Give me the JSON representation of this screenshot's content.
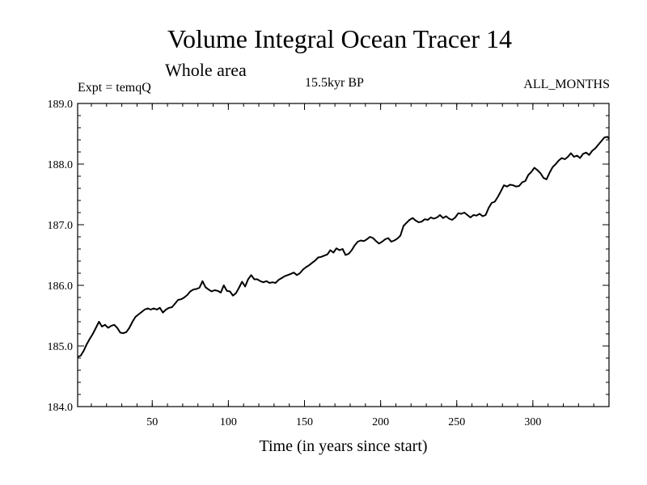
{
  "header": {
    "title": "Volume Integral Ocean Tracer 14",
    "subtitle": "Whole area",
    "left_label": "Expt = temqQ",
    "center_label": "15.5kyr BP",
    "right_label": "ALL_MONTHS"
  },
  "chart_data": {
    "type": "line",
    "title": "Volume Integral Ocean Tracer 14",
    "subtitle": "Whole area",
    "xlabel": "Time (in years since start)",
    "ylabel": "",
    "xlim": [
      1,
      350
    ],
    "ylim": [
      184.0,
      189.0
    ],
    "xticks": [
      50,
      100,
      150,
      200,
      250,
      300
    ],
    "xtick_labels": [
      "50",
      "100",
      "150",
      "200",
      "250",
      "300"
    ],
    "yticks": [
      184.0,
      185.0,
      186.0,
      187.0,
      188.0,
      189.0
    ],
    "ytick_labels": [
      "184.0",
      "185.0",
      "186.0",
      "187.0",
      "188.0",
      "189.0"
    ],
    "grid": false,
    "series": [
      {
        "name": "Tracer 14",
        "color": "#000000",
        "points": [
          [
            1,
            184.82
          ],
          [
            3,
            184.84
          ],
          [
            5,
            184.92
          ],
          [
            7,
            185.03
          ],
          [
            9,
            185.12
          ],
          [
            11,
            185.2
          ],
          [
            13,
            185.3
          ],
          [
            15,
            185.4
          ],
          [
            17,
            185.32
          ],
          [
            19,
            185.35
          ],
          [
            21,
            185.3
          ],
          [
            23,
            185.33
          ],
          [
            25,
            185.35
          ],
          [
            27,
            185.3
          ],
          [
            29,
            185.22
          ],
          [
            31,
            185.21
          ],
          [
            33,
            185.23
          ],
          [
            35,
            185.3
          ],
          [
            37,
            185.4
          ],
          [
            39,
            185.48
          ],
          [
            41,
            185.52
          ],
          [
            43,
            185.56
          ],
          [
            45,
            185.6
          ],
          [
            47,
            185.62
          ],
          [
            49,
            185.6
          ],
          [
            51,
            185.62
          ],
          [
            53,
            185.6
          ],
          [
            55,
            185.63
          ],
          [
            57,
            185.55
          ],
          [
            59,
            185.6
          ],
          [
            61,
            185.63
          ],
          [
            63,
            185.64
          ],
          [
            65,
            185.7
          ],
          [
            67,
            185.76
          ],
          [
            69,
            185.77
          ],
          [
            71,
            185.8
          ],
          [
            73,
            185.84
          ],
          [
            75,
            185.9
          ],
          [
            77,
            185.93
          ],
          [
            79,
            185.94
          ],
          [
            81,
            185.96
          ],
          [
            83,
            186.07
          ],
          [
            85,
            185.97
          ],
          [
            87,
            185.93
          ],
          [
            89,
            185.9
          ],
          [
            91,
            185.92
          ],
          [
            93,
            185.91
          ],
          [
            95,
            185.88
          ],
          [
            97,
            186.0
          ],
          [
            99,
            185.91
          ],
          [
            101,
            185.9
          ],
          [
            103,
            185.83
          ],
          [
            105,
            185.87
          ],
          [
            107,
            185.96
          ],
          [
            109,
            186.06
          ],
          [
            111,
            185.98
          ],
          [
            113,
            186.1
          ],
          [
            115,
            186.17
          ],
          [
            117,
            186.1
          ],
          [
            119,
            186.1
          ],
          [
            121,
            186.07
          ],
          [
            123,
            186.05
          ],
          [
            125,
            186.07
          ],
          [
            127,
            186.04
          ],
          [
            129,
            186.05
          ],
          [
            131,
            186.04
          ],
          [
            133,
            186.09
          ],
          [
            135,
            186.12
          ],
          [
            137,
            186.15
          ],
          [
            139,
            186.17
          ],
          [
            141,
            186.19
          ],
          [
            143,
            186.21
          ],
          [
            145,
            186.17
          ],
          [
            147,
            186.2
          ],
          [
            149,
            186.26
          ],
          [
            151,
            186.3
          ],
          [
            153,
            186.33
          ],
          [
            155,
            186.37
          ],
          [
            157,
            186.41
          ],
          [
            159,
            186.46
          ],
          [
            161,
            186.47
          ],
          [
            163,
            186.49
          ],
          [
            165,
            186.51
          ],
          [
            167,
            186.58
          ],
          [
            169,
            186.54
          ],
          [
            171,
            186.61
          ],
          [
            173,
            186.58
          ],
          [
            175,
            186.6
          ],
          [
            177,
            186.5
          ],
          [
            179,
            186.52
          ],
          [
            181,
            186.58
          ],
          [
            183,
            186.66
          ],
          [
            185,
            186.72
          ],
          [
            187,
            186.74
          ],
          [
            189,
            186.73
          ],
          [
            191,
            186.76
          ],
          [
            193,
            186.8
          ],
          [
            195,
            186.78
          ],
          [
            197,
            186.73
          ],
          [
            199,
            186.69
          ],
          [
            201,
            186.72
          ],
          [
            203,
            186.76
          ],
          [
            205,
            186.78
          ],
          [
            207,
            186.72
          ],
          [
            209,
            186.74
          ],
          [
            211,
            186.77
          ],
          [
            213,
            186.82
          ],
          [
            215,
            186.98
          ],
          [
            217,
            187.03
          ],
          [
            219,
            187.08
          ],
          [
            221,
            187.11
          ],
          [
            223,
            187.07
          ],
          [
            225,
            187.04
          ],
          [
            227,
            187.05
          ],
          [
            229,
            187.09
          ],
          [
            231,
            187.08
          ],
          [
            233,
            187.12
          ],
          [
            235,
            187.1
          ],
          [
            237,
            187.12
          ],
          [
            239,
            187.16
          ],
          [
            241,
            187.11
          ],
          [
            243,
            187.14
          ],
          [
            245,
            187.1
          ],
          [
            247,
            187.08
          ],
          [
            249,
            187.12
          ],
          [
            251,
            187.19
          ],
          [
            253,
            187.18
          ],
          [
            255,
            187.2
          ],
          [
            257,
            187.16
          ],
          [
            259,
            187.12
          ],
          [
            261,
            187.16
          ],
          [
            263,
            187.15
          ],
          [
            265,
            187.18
          ],
          [
            267,
            187.14
          ],
          [
            269,
            187.16
          ],
          [
            271,
            187.28
          ],
          [
            273,
            187.36
          ],
          [
            275,
            187.38
          ],
          [
            277,
            187.46
          ],
          [
            279,
            187.55
          ],
          [
            281,
            187.65
          ],
          [
            283,
            187.63
          ],
          [
            285,
            187.66
          ],
          [
            287,
            187.65
          ],
          [
            289,
            187.63
          ],
          [
            291,
            187.64
          ],
          [
            293,
            187.7
          ],
          [
            295,
            187.72
          ],
          [
            297,
            187.82
          ],
          [
            299,
            187.87
          ],
          [
            301,
            187.94
          ],
          [
            303,
            187.9
          ],
          [
            305,
            187.85
          ],
          [
            307,
            187.77
          ],
          [
            309,
            187.75
          ],
          [
            311,
            187.86
          ],
          [
            313,
            187.95
          ],
          [
            315,
            188.0
          ],
          [
            317,
            188.06
          ],
          [
            319,
            188.1
          ],
          [
            321,
            188.08
          ],
          [
            323,
            188.12
          ],
          [
            325,
            188.18
          ],
          [
            327,
            188.12
          ],
          [
            329,
            188.14
          ],
          [
            331,
            188.1
          ],
          [
            333,
            188.17
          ],
          [
            335,
            188.19
          ],
          [
            337,
            188.15
          ],
          [
            339,
            188.22
          ],
          [
            341,
            188.26
          ],
          [
            343,
            188.32
          ],
          [
            345,
            188.38
          ],
          [
            347,
            188.44
          ],
          [
            349,
            188.45
          ],
          [
            350,
            188.42
          ]
        ]
      }
    ]
  }
}
